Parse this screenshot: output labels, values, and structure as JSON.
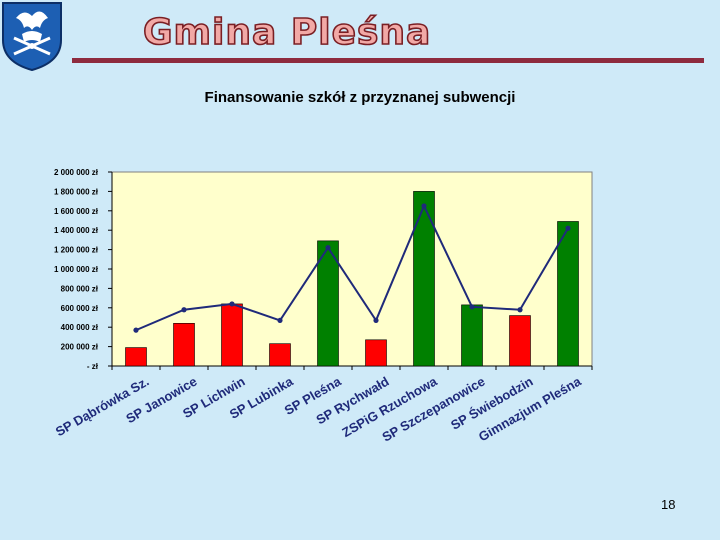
{
  "header": {
    "brand_title": "Gmina Pleśna"
  },
  "footer": {
    "page_number": "18"
  },
  "chart_data": {
    "type": "bar",
    "title": "Finansowanie szkół z przyznanej subwencji",
    "xlabel": "",
    "ylabel": "",
    "ylim": [
      0,
      2000000
    ],
    "y_ticks": [
      {
        "value": 0,
        "label": "-   zł"
      },
      {
        "value": 200000,
        "label": "200 000 zł"
      },
      {
        "value": 400000,
        "label": "400 000 zł"
      },
      {
        "value": 600000,
        "label": "600 000 zł"
      },
      {
        "value": 800000,
        "label": "800 000 zł"
      },
      {
        "value": 1000000,
        "label": "1 000 000 zł"
      },
      {
        "value": 1200000,
        "label": "1 200 000 zł"
      },
      {
        "value": 1400000,
        "label": "1 400 000 zł"
      },
      {
        "value": 1600000,
        "label": "1 600 000 zł"
      },
      {
        "value": 1800000,
        "label": "1 800 000 zł"
      },
      {
        "value": 2000000,
        "label": "2 000 000 zł"
      }
    ],
    "categories": [
      "SP Dąbrówka Sz.",
      "SP Janowice",
      "SP Lichwin",
      "SP Lubinka",
      "SP Pleśna",
      "SP Rychwałd",
      "ZSPiG Rzuchowa",
      "SP Szczepanowice",
      "SP Świebodzin",
      "Gimnazjum Pleśna"
    ],
    "series": [
      {
        "type": "bar",
        "values": [
          190000,
          440000,
          640000,
          230000,
          1290000,
          270000,
          1800000,
          630000,
          520000,
          1490000
        ],
        "colors": [
          "#ff0000",
          "#ff0000",
          "#ff0000",
          "#ff0000",
          "#008000",
          "#ff0000",
          "#008000",
          "#008000",
          "#ff0000",
          "#008000"
        ]
      },
      {
        "type": "line",
        "values": [
          370000,
          580000,
          640000,
          470000,
          1220000,
          470000,
          1650000,
          610000,
          580000,
          1420000
        ],
        "color": "#1f2a7a"
      }
    ],
    "grid": false,
    "legend": "none",
    "colors": {
      "plot_background": "#ffffcc",
      "bar_red": "#ff0000",
      "bar_green": "#008000",
      "line": "#1f2a7a"
    }
  }
}
